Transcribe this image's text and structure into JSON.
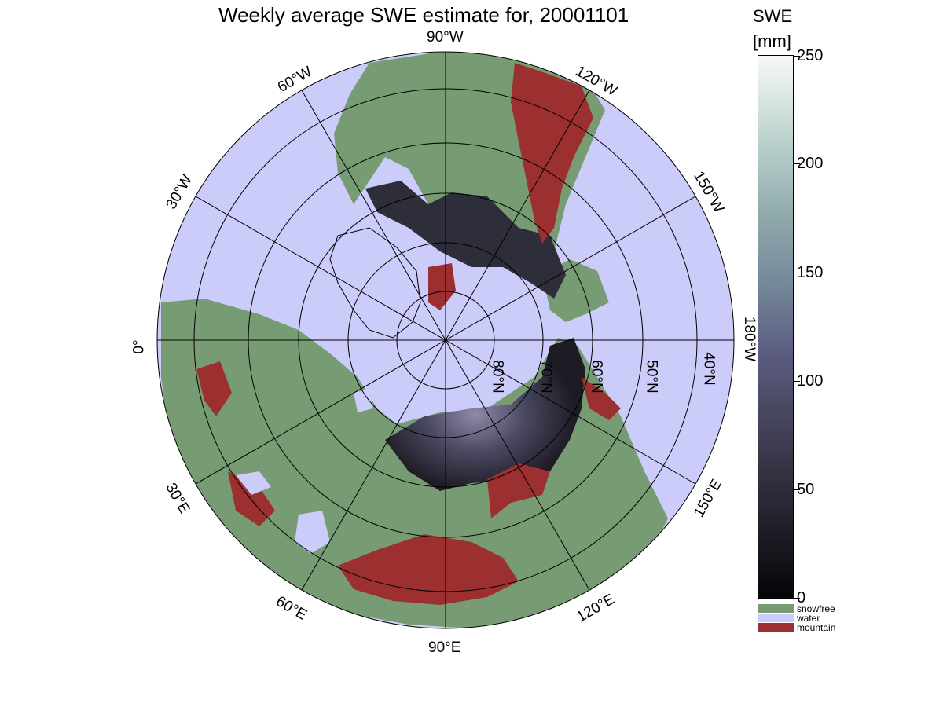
{
  "title": "Weekly average SWE estimate for, 20001101",
  "map": {
    "longitude_labels": [
      "90°W",
      "60°W",
      "120°W",
      "30°W",
      "150°W",
      "0°",
      "180°W",
      "30°E",
      "150°E",
      "60°E",
      "120°E",
      "90°E"
    ],
    "latitude_labels": [
      "80°N",
      "70°N",
      "60°N",
      "50°N",
      "40°N"
    ]
  },
  "colorbar": {
    "title": "SWE",
    "unit": "[mm]",
    "ticks": [
      "0",
      "50",
      "100",
      "150",
      "200",
      "250"
    ],
    "min": 0,
    "max": 250,
    "colors": {
      "low": "#050508",
      "mid": "#5c5c80",
      "high": "#f6f9f8"
    },
    "categories": [
      {
        "label": "snowfree",
        "color": "#779b73"
      },
      {
        "label": "water",
        "color": "#ccccfb"
      },
      {
        "label": "mountain",
        "color": "#9c3030"
      }
    ]
  }
}
